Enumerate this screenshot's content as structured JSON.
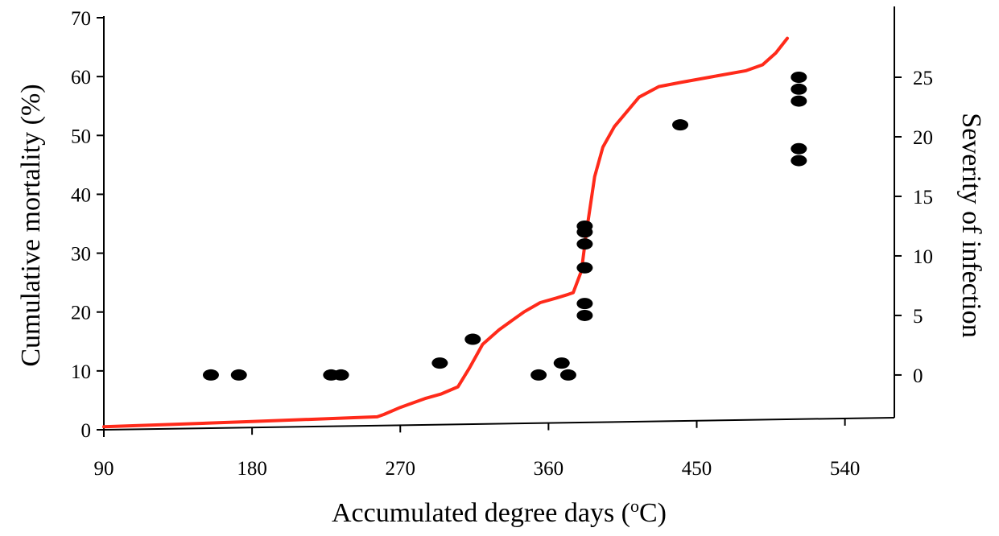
{
  "chart_data": {
    "type": "scatter",
    "title": "",
    "xlabel": "Accumulated degree days (",
    "xlabel_sup": "o",
    "xlabel_end": "C)",
    "ylabel": "Cumulative mortality (%)",
    "y2label": "Severity of infection",
    "xlim": [
      90,
      570
    ],
    "ylim": [
      0,
      70
    ],
    "y2lim": [
      -4.6,
      30
    ],
    "xticks": [
      "90",
      "180",
      "270",
      "360",
      "450",
      "540"
    ],
    "yticks": [
      "0",
      "10",
      "20",
      "30",
      "40",
      "50",
      "60",
      "70"
    ],
    "y2ticks": [
      "0",
      "5",
      "10",
      "15",
      "20",
      "25"
    ],
    "grid": false,
    "series": [
      {
        "type": "line",
        "axis": "left",
        "color": "#ff2a1a",
        "x": [
          90,
          180,
          256,
          260,
          270,
          285,
          295,
          305,
          312,
          320,
          330,
          345,
          355,
          365,
          372,
          375,
          380,
          383,
          388,
          393,
          400,
          415,
          427,
          440,
          460,
          480,
          490,
          498,
          505
        ],
        "y": [
          0.5,
          1.4,
          2.2,
          2.6,
          3.8,
          5.3,
          6.1,
          7.3,
          10.5,
          14.5,
          17.0,
          20.0,
          21.6,
          22.4,
          23.0,
          23.3,
          27.0,
          33.5,
          43.0,
          48.0,
          51.5,
          56.5,
          58.3,
          59.0,
          60.0,
          61.0,
          62.0,
          64.0,
          66.5
        ]
      },
      {
        "type": "scatter",
        "axis": "right",
        "color": "#000000",
        "x": [
          155,
          172,
          228,
          234,
          294,
          314,
          354,
          368,
          372,
          382,
          382,
          382,
          382,
          382,
          382,
          440,
          512,
          512,
          512,
          512,
          512
        ],
        "y": [
          0,
          0,
          0,
          0,
          1,
          3,
          0,
          1,
          0,
          5,
          6,
          9,
          11,
          12,
          12.5,
          21,
          18,
          19,
          23,
          24,
          25
        ]
      }
    ]
  }
}
